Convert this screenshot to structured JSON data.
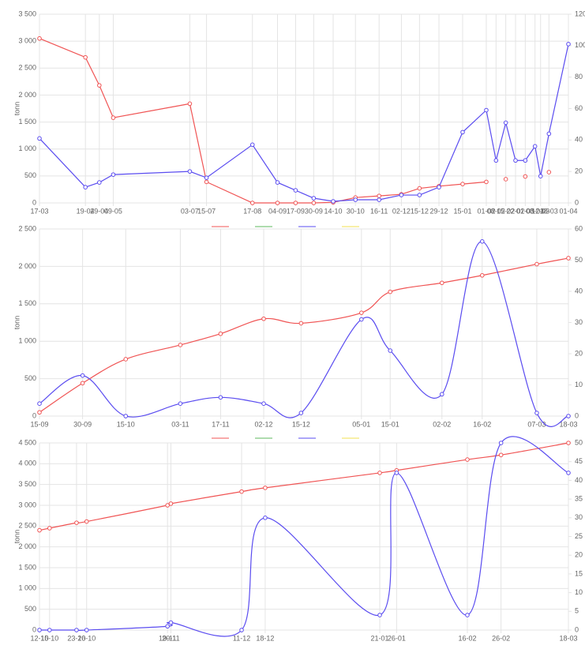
{
  "chart_data": [
    {
      "type": "line",
      "y_label": "tonn",
      "smooth": false,
      "grid": true,
      "legend": true,
      "x": [
        "17-03",
        "19-04",
        "29-04",
        "09-05",
        "03-07",
        "15-07",
        "17-08",
        "04-09",
        "17-09",
        "30-09",
        "14-10",
        "30-10",
        "16-11",
        "02-12",
        "15-12",
        "29-12",
        "15-01",
        "01-02",
        "08-02",
        "15-02",
        "22-02",
        "01-03",
        "08-03",
        "12-03",
        "18-03",
        "01-04"
      ],
      "ylim": [
        0,
        3500
      ],
      "yticks": [
        0,
        {
          "value": 500,
          "label": "500"
        },
        {
          "value": 1000,
          "label": "1 000"
        },
        {
          "value": 1500,
          "label": "1 500"
        },
        {
          "value": 2000,
          "label": "2 000"
        },
        {
          "value": 2500,
          "label": "2 500"
        },
        {
          "value": 3000,
          "label": "3 000"
        },
        {
          "value": 3500,
          "label": "3 500"
        }
      ],
      "y2lim": [
        0,
        120
      ],
      "y2ticks": [
        0,
        20,
        40,
        60,
        80,
        100,
        120
      ],
      "series": [
        {
          "color": "#f05454",
          "axis": "y",
          "values": [
            3050,
            2700,
            2180,
            1580,
            1840,
            390,
            0,
            0,
            0,
            0,
            10,
            100,
            130,
            160,
            270,
            310,
            350,
            390,
            null,
            440,
            null,
            490,
            null,
            null,
            570,
            null
          ]
        },
        {
          "color": "#5cb85c",
          "values": [
            null,
            null,
            null,
            null,
            null,
            null,
            null,
            null,
            null,
            null,
            null,
            null,
            null,
            null,
            null,
            null,
            null,
            null,
            null,
            null,
            null,
            null,
            null,
            null,
            null,
            null
          ]
        },
        {
          "color": "#5a4cf0",
          "axis": "y2",
          "values": [
            41,
            10,
            13,
            18,
            20,
            16,
            37,
            13,
            8,
            3,
            1,
            2,
            2,
            5,
            5,
            10,
            45,
            59,
            27,
            51,
            27,
            27,
            36,
            17,
            44,
            101
          ]
        },
        {
          "color": "#f0e050",
          "values": [
            null,
            null,
            null,
            null,
            null,
            null,
            null,
            null,
            null,
            null,
            null,
            null,
            null,
            null,
            null,
            null,
            null,
            null,
            null,
            null,
            null,
            null,
            null,
            null,
            null,
            null
          ]
        }
      ]
    },
    {
      "type": "line",
      "y_label": "tonn",
      "smooth": true,
      "grid": true,
      "legend": true,
      "x": [
        "15-09",
        "30-09",
        "15-10",
        "03-11",
        "17-11",
        "02-12",
        "15-12",
        "05-01",
        "15-01",
        "02-02",
        "16-02",
        "07-03",
        "18-03"
      ],
      "ylim": [
        0,
        2500
      ],
      "yticks": [
        0,
        {
          "value": 500,
          "label": "500"
        },
        {
          "value": 1000,
          "label": "1 000"
        },
        {
          "value": 1500,
          "label": "1 500"
        },
        {
          "value": 2000,
          "label": "2 000"
        },
        {
          "value": 2500,
          "label": "2 500"
        }
      ],
      "y2lim": [
        0,
        60
      ],
      "y2ticks": [
        0,
        10,
        20,
        30,
        40,
        50,
        60
      ],
      "series": [
        {
          "color": "#f05454",
          "axis": "y",
          "values": [
            50,
            440,
            760,
            950,
            1100,
            1300,
            1240,
            1380,
            1660,
            1780,
            1880,
            2030,
            2110
          ]
        },
        {
          "color": "#5cb85c",
          "values": [
            null,
            null,
            null,
            null,
            null,
            null,
            null,
            null,
            null,
            null,
            null,
            null,
            null
          ]
        },
        {
          "color": "#5a4cf0",
          "axis": "y2",
          "values": [
            4,
            13,
            0,
            4,
            6,
            4,
            1,
            31,
            21,
            7,
            56,
            1,
            0
          ]
        },
        {
          "color": "#f0e050",
          "values": [
            null,
            null,
            null,
            null,
            null,
            null,
            null,
            null,
            null,
            null,
            null,
            null,
            null
          ]
        }
      ]
    },
    {
      "type": "line",
      "y_label": "tonn",
      "smooth": true,
      "grid": true,
      "legend": false,
      "x": [
        "12-10",
        "15-10",
        "23-10",
        "26-10",
        "19-11",
        "20-11",
        "11-12",
        "18-12",
        "21-01",
        "26-01",
        "16-02",
        "26-02",
        "18-03"
      ],
      "ylim": [
        0,
        4500
      ],
      "yticks": [
        0,
        {
          "value": 500,
          "label": "500"
        },
        {
          "value": 1000,
          "label": "1 000"
        },
        {
          "value": 1500,
          "label": "1 500"
        },
        {
          "value": 2000,
          "label": "2 000"
        },
        {
          "value": 2500,
          "label": "2 500"
        },
        {
          "value": 3000,
          "label": "3 000"
        },
        {
          "value": 3500,
          "label": "3 500"
        },
        {
          "value": 4000,
          "label": "4 000"
        },
        {
          "value": 4500,
          "label": "4 500"
        }
      ],
      "y2lim": [
        0,
        50
      ],
      "y2ticks": [
        0,
        5,
        10,
        15,
        20,
        25,
        30,
        35,
        40,
        45,
        50
      ],
      "series": [
        {
          "color": "#f05454",
          "axis": "y",
          "values": [
            2400,
            2450,
            2580,
            2610,
            3000,
            3040,
            3330,
            3420,
            3780,
            3840,
            4100,
            4210,
            4500
          ]
        },
        {
          "color": "#5cb85c",
          "values": [
            null,
            null,
            null,
            null,
            null,
            null,
            null,
            null,
            null,
            null,
            null,
            null,
            null
          ]
        },
        {
          "color": "#5a4cf0",
          "axis": "y2",
          "values": [
            0,
            0,
            0,
            0,
            1,
            2,
            0,
            30,
            4,
            42,
            4,
            50,
            42
          ]
        },
        {
          "color": "#f0e050",
          "values": [
            null,
            null,
            null,
            null,
            null,
            null,
            null,
            null,
            null,
            null,
            null,
            null,
            null
          ]
        }
      ]
    }
  ]
}
